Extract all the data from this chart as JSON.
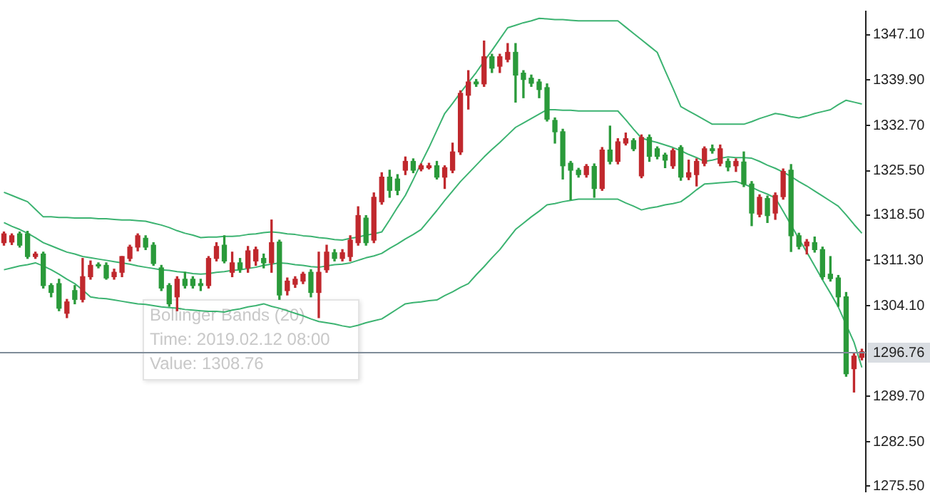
{
  "chart_data": {
    "type": "candlestick",
    "categories": [
      null,
      null,
      null,
      null,
      null,
      null,
      null,
      null,
      null,
      null,
      null,
      null,
      null,
      null,
      null,
      null,
      null,
      null,
      null,
      null,
      null,
      null,
      null,
      null,
      null,
      null,
      null,
      null,
      null,
      null,
      null,
      null,
      null,
      null,
      null,
      null,
      null,
      null,
      null,
      null,
      null,
      null,
      null,
      null,
      null,
      null,
      null,
      null,
      null,
      null,
      null,
      null,
      null,
      null,
      null,
      null,
      null,
      null,
      null,
      null,
      null,
      null,
      null,
      null,
      null,
      null,
      null,
      null,
      null,
      null,
      null,
      null,
      null,
      null,
      null,
      null,
      null,
      null,
      null,
      null,
      null,
      null,
      null,
      null,
      null,
      null,
      null,
      null,
      null,
      null,
      null,
      null,
      null,
      null,
      null,
      null,
      null,
      null,
      null,
      null,
      null,
      null,
      null,
      null,
      null,
      null,
      null,
      null,
      null,
      null
    ],
    "ohlc": [
      [
        1314.1,
        1315.8,
        1313.7,
        1315.5
      ],
      [
        1314.2,
        1315.5,
        1313.8,
        1315.2
      ],
      [
        1315.5,
        1315.8,
        1313.4,
        1313.7
      ],
      [
        1315.5,
        1315.9,
        1311.6,
        1311.9
      ],
      [
        1311.9,
        1312.6,
        1311.6,
        1312.3
      ],
      [
        1312.3,
        1312.6,
        1306.9,
        1307.3
      ],
      [
        1307.3,
        1307.6,
        1305.5,
        1306.2
      ],
      [
        1307.6,
        1308.3,
        1303.3,
        1303.7
      ],
      [
        1302.9,
        1305.1,
        1302.2,
        1304.7
      ],
      [
        1306.5,
        1307.3,
        1304.4,
        1305.1
      ],
      [
        1305.1,
        1311.6,
        1304.7,
        1308.7
      ],
      [
        1308.7,
        1311.2,
        1308.3,
        1310.5
      ],
      [
        1310.5,
        1310.9,
        1310.1,
        1310.4
      ],
      [
        1310.5,
        1310.9,
        1308.3,
        1308.5
      ],
      [
        1308.7,
        1309.9,
        1308.3,
        1309.4
      ],
      [
        1309.4,
        1311.9,
        1308.7,
        1311.9
      ],
      [
        1311.6,
        1313.7,
        1311.2,
        1313.4
      ],
      [
        1313.4,
        1315.5,
        1312.8,
        1315.2
      ],
      [
        1314.8,
        1315.2,
        1313.0,
        1313.4
      ],
      [
        1313.7,
        1314.1,
        1310.5,
        1310.8
      ],
      [
        1310.1,
        1310.5,
        1306.5,
        1306.9
      ],
      [
        1307.3,
        1307.6,
        1304.0,
        1304.4
      ],
      [
        1305.5,
        1308.7,
        1303.3,
        1308.3
      ],
      [
        1308.3,
        1309.4,
        1306.9,
        1307.3
      ],
      [
        1308.3,
        1308.7,
        1306.9,
        1307.3
      ],
      [
        1307.6,
        1308.3,
        1306.5,
        1307.3
      ],
      [
        1307.3,
        1311.9,
        1306.9,
        1311.6
      ],
      [
        1311.6,
        1314.1,
        1311.2,
        1313.5
      ],
      [
        1313.7,
        1315.2,
        1310.9,
        1311.2
      ],
      [
        1309.4,
        1312.6,
        1308.7,
        1310.9
      ],
      [
        1310.9,
        1311.6,
        1309.4,
        1309.9
      ],
      [
        1310.1,
        1313.5,
        1309.4,
        1312.8
      ],
      [
        1311.2,
        1313.4,
        1310.5,
        1313.0
      ],
      [
        1311.6,
        1312.3,
        1310.1,
        1310.9
      ],
      [
        1310.9,
        1317.7,
        1309.4,
        1314.1
      ],
      [
        1314.2,
        1314.5,
        1305.1,
        1305.8
      ],
      [
        1306.5,
        1308.5,
        1305.8,
        1308.0
      ],
      [
        1307.5,
        1308.7,
        1307.0,
        1308.3
      ],
      [
        1308.0,
        1309.4,
        1307.6,
        1309.1
      ],
      [
        1309.4,
        1309.8,
        1305.5,
        1306.2
      ],
      [
        1306.2,
        1312.6,
        1302.2,
        1309.4
      ],
      [
        1309.8,
        1313.7,
        1309.4,
        1312.6
      ],
      [
        1312.5,
        1313.0,
        1311.2,
        1311.6
      ],
      [
        1311.6,
        1313.0,
        1311.2,
        1312.5
      ],
      [
        1311.9,
        1315.2,
        1311.2,
        1314.5
      ],
      [
        1314.1,
        1319.8,
        1313.7,
        1318.4
      ],
      [
        1318.0,
        1318.4,
        1313.7,
        1314.1
      ],
      [
        1314.5,
        1322.0,
        1314.1,
        1321.3
      ],
      [
        1320.6,
        1325.2,
        1320.2,
        1324.5
      ],
      [
        1324.5,
        1325.6,
        1321.3,
        1322.4
      ],
      [
        1324.2,
        1324.9,
        1321.7,
        1322.4
      ],
      [
        1325.6,
        1327.7,
        1324.9,
        1327.0
      ],
      [
        1327.0,
        1327.4,
        1325.2,
        1325.6
      ],
      [
        1325.8,
        1326.6,
        1325.5,
        1326.3
      ],
      [
        1326.0,
        1326.7,
        1325.8,
        1326.3
      ],
      [
        1326.3,
        1327.0,
        1324.2,
        1324.5
      ],
      [
        1324.5,
        1326.3,
        1322.7,
        1326.0
      ],
      [
        1325.6,
        1329.9,
        1325.2,
        1328.5
      ],
      [
        1328.5,
        1338.2,
        1328.1,
        1337.8
      ],
      [
        1337.5,
        1341.4,
        1335.3,
        1339.6
      ],
      [
        1339.6,
        1340.0,
        1338.9,
        1339.3
      ],
      [
        1339.3,
        1346.1,
        1338.9,
        1343.6
      ],
      [
        1343.6,
        1344.0,
        1341.1,
        1341.8
      ],
      [
        1342.1,
        1344.0,
        1341.1,
        1343.6
      ],
      [
        1343.2,
        1345.7,
        1342.8,
        1344.3
      ],
      [
        1344.3,
        1345.7,
        1336.4,
        1340.7
      ],
      [
        1341.0,
        1341.4,
        1337.1,
        1340.0
      ],
      [
        1340.2,
        1340.7,
        1338.9,
        1339.4
      ],
      [
        1339.6,
        1340.0,
        1337.1,
        1338.4
      ],
      [
        1338.7,
        1339.3,
        1333.4,
        1333.7
      ],
      [
        1333.5,
        1333.9,
        1329.9,
        1331.7
      ],
      [
        1331.7,
        1332.1,
        1324.2,
        1326.3
      ],
      [
        1326.7,
        1327.0,
        1320.9,
        1325.6
      ],
      [
        1325.6,
        1325.9,
        1324.5,
        1324.9
      ],
      [
        1324.9,
        1326.5,
        1324.5,
        1326.2
      ],
      [
        1326.2,
        1326.6,
        1321.3,
        1322.7
      ],
      [
        1322.7,
        1329.2,
        1322.4,
        1328.8
      ],
      [
        1328.8,
        1332.6,
        1326.6,
        1327.0
      ],
      [
        1327.0,
        1330.6,
        1326.6,
        1330.1
      ],
      [
        1329.9,
        1331.5,
        1329.6,
        1330.6
      ],
      [
        1330.3,
        1330.6,
        1328.7,
        1329.0
      ],
      [
        1324.7,
        1331.2,
        1324.4,
        1330.8
      ],
      [
        1330.8,
        1331.2,
        1327.0,
        1327.8
      ],
      [
        1329.0,
        1329.3,
        1327.4,
        1327.8
      ],
      [
        1328.0,
        1328.3,
        1326.0,
        1327.2
      ],
      [
        1326.3,
        1329.0,
        1325.9,
        1328.7
      ],
      [
        1329.2,
        1329.5,
        1324.0,
        1324.5
      ],
      [
        1324.5,
        1327.2,
        1324.1,
        1325.2
      ],
      [
        1324.9,
        1327.4,
        1323.1,
        1327.0
      ],
      [
        1326.7,
        1329.3,
        1326.3,
        1329.0
      ],
      [
        1329.0,
        1329.6,
        1328.3,
        1328.7
      ],
      [
        1326.7,
        1329.6,
        1326.3,
        1329.0
      ],
      [
        1327.0,
        1327.4,
        1325.5,
        1326.1
      ],
      [
        1326.3,
        1327.4,
        1325.4,
        1327.0
      ],
      [
        1326.9,
        1328.5,
        1323.0,
        1323.4
      ],
      [
        1323.4,
        1323.8,
        1316.8,
        1318.8
      ],
      [
        1318.6,
        1321.7,
        1318.2,
        1321.3
      ],
      [
        1321.1,
        1321.5,
        1317.3,
        1318.4
      ],
      [
        1318.8,
        1322.0,
        1317.8,
        1321.6
      ],
      [
        1321.4,
        1325.8,
        1321.0,
        1325.4
      ],
      [
        1325.6,
        1326.5,
        1312.7,
        1315.2
      ],
      [
        1315.2,
        1315.6,
        1313.1,
        1313.5
      ],
      [
        1313.6,
        1314.6,
        1312.3,
        1314.2
      ],
      [
        1314.1,
        1315.0,
        1312.6,
        1313.0
      ],
      [
        1313.0,
        1313.4,
        1308.3,
        1308.7
      ],
      [
        1309.1,
        1311.9,
        1308.0,
        1308.4
      ],
      [
        1308.5,
        1308.9,
        1304.0,
        1305.5
      ],
      [
        1305.5,
        1306.2,
        1292.9,
        1293.3
      ],
      [
        1294.1,
        1296.5,
        1290.4,
        1296.1
      ],
      [
        1295.9,
        1297.2,
        1295.5,
        1296.8
      ]
    ],
    "colors": [
      "#c0282d",
      "#c0282d",
      "#2a9a3a",
      "#2a9a3a",
      "#c0282d",
      "#2a9a3a",
      "#2a9a3a",
      "#2a9a3a",
      "#c0282d",
      "#2a9a3a",
      "#c0282d",
      "#c0282d",
      "#2a9a3a",
      "#2a9a3a",
      "#c0282d",
      "#c0282d",
      "#c0282d",
      "#c0282d",
      "#2a9a3a",
      "#2a9a3a",
      "#2a9a3a",
      "#2a9a3a",
      "#c0282d",
      "#2a9a3a",
      "#2a9a3a",
      "#2a9a3a",
      "#c0282d",
      "#c0282d",
      "#2a9a3a",
      "#c0282d",
      "#2a9a3a",
      "#c0282d",
      "#c0282d",
      "#2a9a3a",
      "#c0282d",
      "#2a9a3a",
      "#c0282d",
      "#c0282d",
      "#c0282d",
      "#2a9a3a",
      "#c0282d",
      "#c0282d",
      "#2a9a3a",
      "#c0282d",
      "#c0282d",
      "#c0282d",
      "#2a9a3a",
      "#c0282d",
      "#c0282d",
      "#2a9a3a",
      "#2a9a3a",
      "#c0282d",
      "#2a9a3a",
      "#c0282d",
      "#c0282d",
      "#2a9a3a",
      "#c0282d",
      "#c0282d",
      "#c0282d",
      "#c0282d",
      "#2a9a3a",
      "#c0282d",
      "#2a9a3a",
      "#c0282d",
      "#c0282d",
      "#2a9a3a",
      "#2a9a3a",
      "#2a9a3a",
      "#2a9a3a",
      "#2a9a3a",
      "#2a9a3a",
      "#2a9a3a",
      "#2a9a3a",
      "#2a9a3a",
      "#c0282d",
      "#2a9a3a",
      "#c0282d",
      "#2a9a3a",
      "#c0282d",
      "#c0282d",
      "#2a9a3a",
      "#c0282d",
      "#2a9a3a",
      "#2a9a3a",
      "#2a9a3a",
      "#c0282d",
      "#2a9a3a",
      "#c0282d",
      "#c0282d",
      "#c0282d",
      "#2a9a3a",
      "#c0282d",
      "#2a9a3a",
      "#c0282d",
      "#2a9a3a",
      "#2a9a3a",
      "#c0282d",
      "#2a9a3a",
      "#c0282d",
      "#c0282d",
      "#2a9a3a",
      "#2a9a3a",
      "#c0282d",
      "#2a9a3a",
      "#2a9a3a",
      "#2a9a3a",
      "#2a9a3a",
      "#2a9a3a",
      "#c0282d",
      "#c0282d"
    ],
    "series": [
      {
        "type": "line",
        "color": "#3cb371",
        "values": [
          1322.1,
          1321.6,
          1321.1,
          1320.6,
          1319.4,
          1318.2,
          1318.2,
          1318.1,
          1318.1,
          1318.0,
          1318.0,
          1318.0,
          1317.9,
          1317.9,
          1317.8,
          1317.7,
          1317.7,
          1317.6,
          1317.5,
          1317.2,
          1316.9,
          1316.5,
          1316.0,
          1315.6,
          1315.3,
          1314.9,
          1315.0,
          1315.0,
          1315.1,
          1315.1,
          1315.2,
          1315.4,
          1315.5,
          1315.7,
          1315.8,
          1315.7,
          1315.5,
          1315.4,
          1315.2,
          1315.1,
          1314.9,
          1314.8,
          1314.6,
          1314.5,
          1314.8,
          1315.0,
          1315.3,
          1315.5,
          1315.8,
          1317.7,
          1319.7,
          1321.6,
          1324.1,
          1326.7,
          1329.2,
          1331.9,
          1334.6,
          1336.2,
          1337.9,
          1339.5,
          1341.1,
          1342.9,
          1344.6,
          1346.4,
          1348.2,
          1348.6,
          1349.0,
          1349.3,
          1349.7,
          1349.6,
          1349.5,
          1349.5,
          1349.4,
          1349.3,
          1349.3,
          1349.3,
          1349.3,
          1349.3,
          1349.3,
          1348.3,
          1347.3,
          1346.3,
          1345.3,
          1344.3,
          1341.4,
          1338.6,
          1335.7,
          1335.0,
          1334.3,
          1333.6,
          1332.9,
          1332.9,
          1332.9,
          1332.9,
          1332.9,
          1333.3,
          1333.8,
          1334.2,
          1334.6,
          1334.4,
          1334.1,
          1333.9,
          1334.2,
          1334.6,
          1334.9,
          1335.2,
          1336.0,
          1336.7,
          1336.4,
          1336.1
        ]
      },
      {
        "type": "line",
        "color": "#3cb371",
        "values": [
          1317.3,
          1316.7,
          1316.2,
          1315.6,
          1314.9,
          1314.1,
          1313.6,
          1313.1,
          1312.6,
          1312.3,
          1311.9,
          1311.7,
          1311.5,
          1311.3,
          1311.1,
          1310.9,
          1310.7,
          1310.4,
          1310.2,
          1310.0,
          1309.8,
          1309.7,
          1309.5,
          1309.4,
          1309.2,
          1309.1,
          1309.2,
          1309.4,
          1309.5,
          1309.7,
          1309.8,
          1310.0,
          1310.2,
          1310.5,
          1310.7,
          1310.9,
          1310.8,
          1310.6,
          1310.5,
          1310.3,
          1310.2,
          1310.4,
          1310.6,
          1310.7,
          1310.9,
          1311.3,
          1311.7,
          1312.0,
          1312.4,
          1313.2,
          1313.9,
          1314.7,
          1315.4,
          1316.2,
          1317.7,
          1319.2,
          1320.8,
          1322.3,
          1323.8,
          1325.1,
          1326.4,
          1327.7,
          1328.9,
          1330.0,
          1331.2,
          1332.4,
          1333.1,
          1333.8,
          1334.5,
          1335.2,
          1335.2,
          1335.1,
          1335.1,
          1335.0,
          1335.0,
          1335.0,
          1335.0,
          1335.0,
          1335.0,
          1333.6,
          1332.1,
          1330.7,
          1330.3,
          1330.0,
          1329.6,
          1329.2,
          1328.7,
          1328.1,
          1327.6,
          1327.0,
          1327.2,
          1327.5,
          1327.7,
          1327.6,
          1327.6,
          1327.5,
          1327.0,
          1326.4,
          1325.9,
          1325.3,
          1324.6,
          1323.8,
          1323.1,
          1322.3,
          1321.5,
          1320.7,
          1319.9,
          1318.5,
          1317.0,
          1315.6
        ]
      },
      {
        "type": "line",
        "color": "#3cb371",
        "values": [
          1309.8,
          1310.1,
          1310.4,
          1310.6,
          1310.9,
          1310.4,
          1309.8,
          1309.1,
          1308.3,
          1307.6,
          1306.6,
          1305.5,
          1305.3,
          1305.2,
          1305.0,
          1304.8,
          1304.6,
          1304.4,
          1304.3,
          1304.1,
          1303.9,
          1303.8,
          1303.7,
          1303.5,
          1303.4,
          1303.3,
          1303.2,
          1303.2,
          1303.1,
          1303.4,
          1303.6,
          1303.9,
          1304.1,
          1304.4,
          1304.0,
          1303.7,
          1303.3,
          1302.9,
          1302.5,
          1302.0,
          1301.6,
          1301.4,
          1301.2,
          1300.9,
          1300.7,
          1301.0,
          1301.4,
          1301.7,
          1302.0,
          1302.8,
          1303.6,
          1304.4,
          1304.6,
          1304.7,
          1304.9,
          1305.0,
          1305.7,
          1306.3,
          1307.0,
          1307.6,
          1309.0,
          1310.3,
          1311.7,
          1313.0,
          1314.6,
          1316.2,
          1317.2,
          1318.2,
          1319.1,
          1320.1,
          1320.3,
          1320.6,
          1320.8,
          1321.0,
          1321.0,
          1321.0,
          1321.0,
          1321.0,
          1321.0,
          1320.4,
          1319.9,
          1319.3,
          1319.6,
          1319.8,
          1320.1,
          1320.3,
          1320.6,
          1321.5,
          1322.5,
          1323.4,
          1323.5,
          1323.6,
          1323.7,
          1323.8,
          1323.4,
          1322.9,
          1322.3,
          1321.8,
          1321.2,
          1319.1,
          1316.9,
          1314.7,
          1312.6,
          1310.4,
          1308.2,
          1306.1,
          1303.9,
          1301.1,
          1298.3,
          1294.3
        ]
      }
    ],
    "ylim": [
      1274.6,
      1350.8
    ],
    "yticks": [
      {
        "value": 1347.1,
        "label": "1347.10"
      },
      {
        "value": 1339.9,
        "label": "1339.90"
      },
      {
        "value": 1332.7,
        "label": "1332.70"
      },
      {
        "value": 1325.5,
        "label": "1325.50"
      },
      {
        "value": 1318.5,
        "label": "1318.50"
      },
      {
        "value": 1311.3,
        "label": "1311.30"
      },
      {
        "value": 1304.1,
        "label": "1304.10"
      },
      {
        "value": 1289.7,
        "label": "1289.70"
      },
      {
        "value": 1282.5,
        "label": "1282.50"
      },
      {
        "value": 1275.5,
        "label": "1275.50"
      }
    ],
    "tick_labels": "y",
    "ref_lines": [
      {
        "axis": "y",
        "value": 1296.76,
        "label": "1296.76",
        "color": "#7f8c99"
      }
    ],
    "annotations": [
      "Bollinger Bands (20)",
      "Time: 2019.02.12 08:00",
      "Value: 1308.76"
    ],
    "legend": false
  }
}
